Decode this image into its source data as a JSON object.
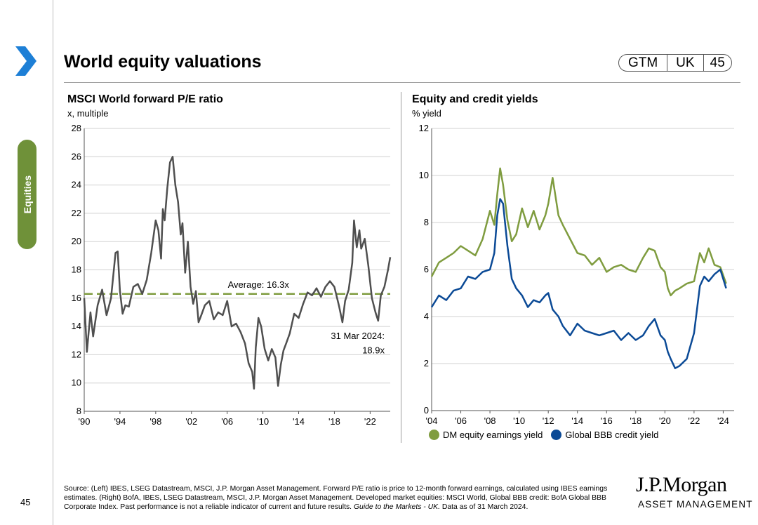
{
  "section": "Equities",
  "page_title": "World equity valuations",
  "badges": [
    "GTM",
    "UK",
    "45"
  ],
  "page_number": "45",
  "colors": {
    "green": "#7f9c3f",
    "dark_green": "#6f9139",
    "blue": "#0b4a96",
    "grey_line": "#4f4f4f",
    "arrow_blue": "#1d7fd6"
  },
  "chart_data": [
    {
      "type": "line",
      "title": "MSCI World forward P/E ratio",
      "ylabel": "x, multiple",
      "xlim": [
        1990,
        2024.25
      ],
      "ylim": [
        8,
        28
      ],
      "yticks": [
        8,
        10,
        12,
        14,
        16,
        18,
        20,
        22,
        24,
        26,
        28
      ],
      "ytick_labels": [
        "8",
        "10",
        "12",
        "14",
        "16",
        "18",
        "20",
        "22",
        "24",
        "26",
        "28"
      ],
      "xticks": [
        1990,
        1994,
        1998,
        2002,
        2006,
        2010,
        2014,
        2018,
        2022
      ],
      "xtick_labels": [
        "'90",
        "'94",
        "'98",
        "'02",
        "'06",
        "'10",
        "'14",
        "'18",
        "'22"
      ],
      "average": {
        "value": 16.3,
        "label": "Average: 16.3x"
      },
      "annotation": {
        "line1": "31 Mar 2024:",
        "line2": "18.9x"
      },
      "series": [
        {
          "name": "MSCI World forward P/E",
          "x": [
            1990.0,
            1990.3,
            1990.7,
            1991.0,
            1991.5,
            1992.0,
            1992.5,
            1993.0,
            1993.5,
            1993.75,
            1994.0,
            1994.3,
            1994.6,
            1995.0,
            1995.5,
            1996.0,
            1996.5,
            1997.0,
            1997.5,
            1998.0,
            1998.3,
            1998.6,
            1998.8,
            1999.0,
            1999.3,
            1999.6,
            1999.9,
            2000.2,
            2000.5,
            2000.8,
            2001.0,
            2001.3,
            2001.6,
            2001.9,
            2002.2,
            2002.5,
            2002.8,
            2003.1,
            2003.5,
            2004.0,
            2004.5,
            2005.0,
            2005.5,
            2006.0,
            2006.5,
            2007.0,
            2007.5,
            2008.0,
            2008.4,
            2008.8,
            2009.0,
            2009.2,
            2009.5,
            2009.8,
            2010.2,
            2010.6,
            2011.0,
            2011.4,
            2011.7,
            2012.0,
            2012.3,
            2012.6,
            2013.0,
            2013.5,
            2014.0,
            2014.5,
            2015.0,
            2015.5,
            2016.0,
            2016.5,
            2017.0,
            2017.5,
            2018.0,
            2018.5,
            2018.9,
            2019.2,
            2019.6,
            2020.0,
            2020.2,
            2020.5,
            2020.8,
            2021.0,
            2021.4,
            2021.8,
            2022.2,
            2022.6,
            2022.9,
            2023.2,
            2023.6,
            2024.0,
            2024.25
          ],
          "values": [
            16.0,
            12.2,
            15.0,
            13.3,
            15.5,
            16.6,
            14.8,
            16.0,
            19.2,
            19.3,
            16.5,
            14.9,
            15.5,
            15.4,
            16.8,
            17.0,
            16.3,
            17.3,
            19.2,
            21.5,
            20.8,
            18.8,
            22.3,
            21.5,
            23.8,
            25.6,
            26.0,
            24.0,
            22.8,
            20.5,
            21.3,
            17.8,
            20.0,
            16.8,
            15.6,
            16.5,
            14.3,
            14.8,
            15.5,
            15.8,
            14.5,
            15.0,
            14.8,
            15.8,
            14.0,
            14.2,
            13.6,
            12.8,
            11.4,
            10.8,
            9.6,
            12.5,
            14.6,
            14.0,
            12.4,
            11.6,
            12.4,
            11.8,
            9.8,
            11.3,
            12.3,
            12.8,
            13.5,
            14.9,
            14.6,
            15.6,
            16.4,
            16.2,
            16.7,
            16.1,
            16.8,
            17.2,
            16.8,
            15.5,
            14.3,
            15.8,
            16.6,
            18.5,
            21.5,
            19.6,
            20.8,
            19.5,
            20.2,
            18.3,
            16.0,
            15.0,
            14.4,
            16.2,
            16.8,
            18.0,
            18.9
          ]
        }
      ]
    },
    {
      "type": "line",
      "title": "Equity and credit yields",
      "ylabel": "% yield",
      "xlim": [
        2004,
        2024.75
      ],
      "ylim": [
        0,
        12
      ],
      "yticks": [
        0,
        2,
        4,
        6,
        8,
        10,
        12
      ],
      "ytick_labels": [
        "0",
        "2",
        "4",
        "6",
        "8",
        "10",
        "12"
      ],
      "xticks": [
        2004,
        2006,
        2008,
        2010,
        2012,
        2014,
        2016,
        2018,
        2020,
        2022,
        2024
      ],
      "xtick_labels": [
        "'04",
        "'06",
        "'08",
        "'10",
        "'12",
        "'14",
        "'16",
        "'18",
        "'20",
        "'22",
        "'24"
      ],
      "series": [
        {
          "name": "DM equity earnings yield",
          "x": [
            2004.0,
            2004.5,
            2005.0,
            2005.5,
            2006.0,
            2006.5,
            2007.0,
            2007.5,
            2008.0,
            2008.3,
            2008.5,
            2008.7,
            2008.9,
            2009.2,
            2009.5,
            2009.8,
            2010.2,
            2010.6,
            2011.0,
            2011.4,
            2011.8,
            2012.0,
            2012.3,
            2012.7,
            2013.0,
            2013.5,
            2014.0,
            2014.5,
            2015.0,
            2015.5,
            2016.0,
            2016.5,
            2017.0,
            2017.5,
            2018.0,
            2018.5,
            2018.9,
            2019.3,
            2019.7,
            2020.0,
            2020.2,
            2020.4,
            2020.7,
            2021.0,
            2021.5,
            2022.0,
            2022.4,
            2022.7,
            2023.0,
            2023.4,
            2023.8,
            2024.2
          ],
          "values": [
            5.7,
            6.3,
            6.5,
            6.7,
            7.0,
            6.8,
            6.6,
            7.3,
            8.5,
            7.9,
            9.2,
            10.3,
            9.6,
            8.1,
            7.2,
            7.5,
            8.6,
            7.8,
            8.5,
            7.7,
            8.3,
            8.8,
            9.9,
            8.3,
            7.9,
            7.3,
            6.7,
            6.6,
            6.2,
            6.5,
            5.9,
            6.1,
            6.2,
            6.0,
            5.9,
            6.5,
            6.9,
            6.8,
            6.1,
            5.9,
            5.2,
            4.9,
            5.1,
            5.2,
            5.4,
            5.5,
            6.7,
            6.3,
            6.9,
            6.2,
            6.1,
            5.4
          ]
        },
        {
          "name": "Global BBB credit yield",
          "x": [
            2004.0,
            2004.5,
            2005.0,
            2005.5,
            2006.0,
            2006.5,
            2007.0,
            2007.5,
            2008.0,
            2008.3,
            2008.5,
            2008.7,
            2008.9,
            2009.2,
            2009.5,
            2009.8,
            2010.2,
            2010.6,
            2011.0,
            2011.4,
            2011.8,
            2012.0,
            2012.3,
            2012.7,
            2013.0,
            2013.5,
            2014.0,
            2014.5,
            2015.0,
            2015.5,
            2016.0,
            2016.5,
            2017.0,
            2017.5,
            2018.0,
            2018.5,
            2018.9,
            2019.3,
            2019.7,
            2020.0,
            2020.2,
            2020.4,
            2020.7,
            2021.0,
            2021.5,
            2022.0,
            2022.4,
            2022.7,
            2023.0,
            2023.4,
            2023.8,
            2024.2
          ],
          "values": [
            4.4,
            4.9,
            4.7,
            5.1,
            5.2,
            5.7,
            5.6,
            5.9,
            6.0,
            6.7,
            8.3,
            9.0,
            8.8,
            7.0,
            5.6,
            5.2,
            4.9,
            4.4,
            4.7,
            4.6,
            4.9,
            5.0,
            4.3,
            4.0,
            3.6,
            3.2,
            3.7,
            3.4,
            3.3,
            3.2,
            3.3,
            3.4,
            3.0,
            3.3,
            3.0,
            3.2,
            3.6,
            3.9,
            3.2,
            3.0,
            2.5,
            2.2,
            1.8,
            1.9,
            2.2,
            3.3,
            5.3,
            5.7,
            5.5,
            5.8,
            6.0,
            5.2
          ]
        }
      ]
    }
  ],
  "source_text": "Source: (Left) IBES, LSEG Datastream, MSCI, J.P. Morgan Asset Management. Forward P/E ratio is price to 12-month forward earnings, calculated using IBES earnings estimates. (Right) BofA, IBES, LSEG Datastream, MSCI, J.P. Morgan Asset Management. Developed market equities: MSCI World, Global BBB credit: BofA Global BBB Corporate Index. Past performance is not a reliable indicator of current and future results.",
  "source_italic": "Guide to the Markets - UK.",
  "source_tail": "Data as of 31 March 2024.",
  "logo_line1": "J.P.Morgan",
  "logo_line2": "ASSET MANAGEMENT"
}
